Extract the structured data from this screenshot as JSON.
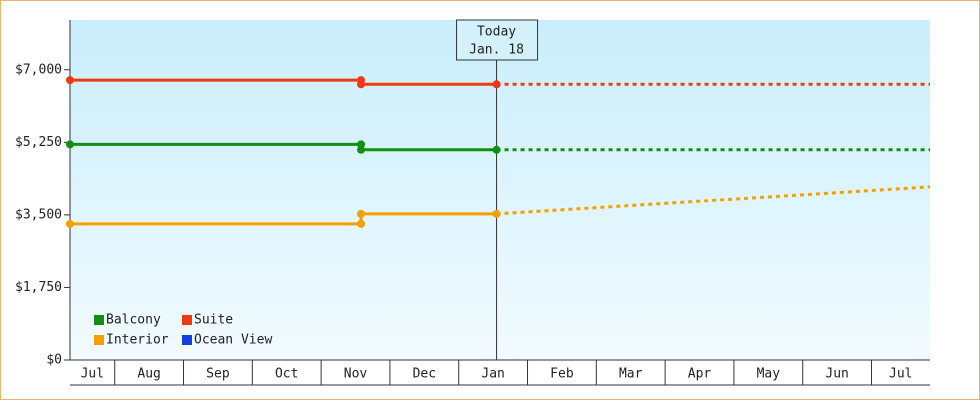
{
  "chart_data": {
    "type": "line",
    "categories": [
      "Jul",
      "Aug",
      "Sep",
      "Oct",
      "Nov",
      "Dec",
      "Jan",
      "Feb",
      "Mar",
      "Apr",
      "May",
      "Jun",
      "Jul"
    ],
    "x": [
      0.35,
      4.58,
      4.58,
      6.55,
      12.85
    ],
    "xlim": [
      0.35,
      12.85
    ],
    "ylim": [
      0,
      8200
    ],
    "yticks": [
      {
        "value": 0,
        "label": "$0"
      },
      {
        "value": 1750,
        "label": "$1,750"
      },
      {
        "value": 3500,
        "label": "$3,500"
      },
      {
        "value": 5250,
        "label": "$5,250"
      },
      {
        "value": 7000,
        "label": "$7,000"
      }
    ],
    "today": {
      "x": 6.55,
      "label": "Today",
      "date": "Jan. 18"
    },
    "series": [
      {
        "name": "Balcony",
        "color": "#109010",
        "values": [
          5200,
          5200,
          5070,
          5070,
          5070
        ]
      },
      {
        "name": "Suite",
        "color": "#ee3a10",
        "values": [
          6750,
          6750,
          6650,
          6650,
          6650
        ]
      },
      {
        "name": "Interior",
        "color": "#f5a000",
        "values": [
          3283,
          3283,
          3524,
          3524,
          4176
        ]
      },
      {
        "name": "Ocean View",
        "color": "#1040e0",
        "values": [
          null,
          null,
          null,
          null,
          null
        ]
      }
    ]
  }
}
